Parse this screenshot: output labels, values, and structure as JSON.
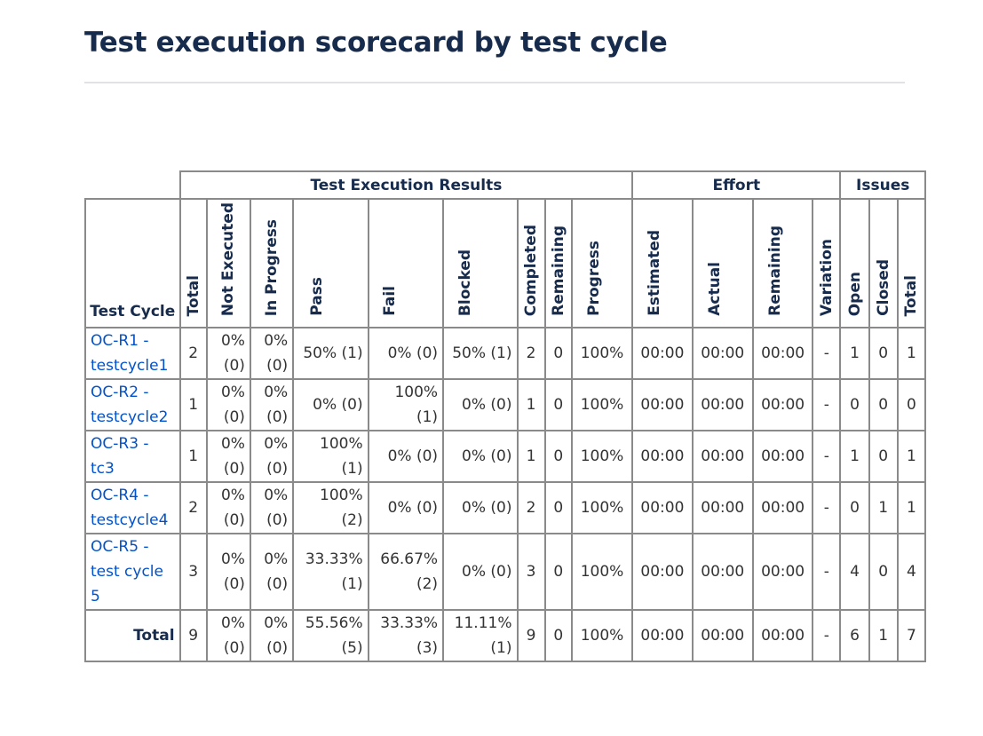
{
  "page": {
    "title": "Test execution scorecard by test cycle"
  },
  "groups": {
    "results": "Test Execution Results",
    "effort": "Effort",
    "issues": "Issues"
  },
  "columns": {
    "test_cycle": "Test Cycle",
    "total": "Total",
    "not_executed": "Not Executed",
    "in_progress": "In Progress",
    "pass": "Pass",
    "fail": "Fail",
    "blocked": "Blocked",
    "completed": "Completed",
    "remaining": "Remaining",
    "progress": "Progress",
    "estimated": "Estimated",
    "actual": "Actual",
    "effort_remaining": "Remaining",
    "variation": "Variation",
    "open": "Open",
    "closed": "Closed",
    "issues_total": "Total"
  },
  "rows": [
    {
      "cycle": "OC-R1 - testcycle1",
      "total": "2",
      "not_executed": "0% (0)",
      "in_progress": "0% (0)",
      "pass": "50% (1)",
      "fail": "0% (0)",
      "blocked": "50% (1)",
      "completed": "2",
      "remaining": "0",
      "progress": "100%",
      "estimated": "00:00",
      "actual": "00:00",
      "effort_remaining": "00:00",
      "variation": "-",
      "open": "1",
      "closed": "0",
      "issues_total": "1"
    },
    {
      "cycle": "OC-R2 - testcycle2",
      "total": "1",
      "not_executed": "0% (0)",
      "in_progress": "0% (0)",
      "pass": "0% (0)",
      "fail": "100% (1)",
      "blocked": "0% (0)",
      "completed": "1",
      "remaining": "0",
      "progress": "100%",
      "estimated": "00:00",
      "actual": "00:00",
      "effort_remaining": "00:00",
      "variation": "-",
      "open": "0",
      "closed": "0",
      "issues_total": "0"
    },
    {
      "cycle": "OC-R3 - tc3",
      "total": "1",
      "not_executed": "0% (0)",
      "in_progress": "0% (0)",
      "pass": "100% (1)",
      "fail": "0% (0)",
      "blocked": "0% (0)",
      "completed": "1",
      "remaining": "0",
      "progress": "100%",
      "estimated": "00:00",
      "actual": "00:00",
      "effort_remaining": "00:00",
      "variation": "-",
      "open": "1",
      "closed": "0",
      "issues_total": "1"
    },
    {
      "cycle": "OC-R4 - testcycle4",
      "total": "2",
      "not_executed": "0% (0)",
      "in_progress": "0% (0)",
      "pass": "100% (2)",
      "fail": "0% (0)",
      "blocked": "0% (0)",
      "completed": "2",
      "remaining": "0",
      "progress": "100%",
      "estimated": "00:00",
      "actual": "00:00",
      "effort_remaining": "00:00",
      "variation": "-",
      "open": "0",
      "closed": "1",
      "issues_total": "1"
    },
    {
      "cycle": "OC-R5 - test cycle 5",
      "total": "3",
      "not_executed": "0% (0)",
      "in_progress": "0% (0)",
      "pass": "33.33% (1)",
      "fail": "66.67% (2)",
      "blocked": "0% (0)",
      "completed": "3",
      "remaining": "0",
      "progress": "100%",
      "estimated": "00:00",
      "actual": "00:00",
      "effort_remaining": "00:00",
      "variation": "-",
      "open": "4",
      "closed": "0",
      "issues_total": "4"
    }
  ],
  "totals": {
    "label": "Total",
    "total": "9",
    "not_executed": "0% (0)",
    "in_progress": "0% (0)",
    "pass": "55.56% (5)",
    "fail": "33.33% (3)",
    "blocked": "11.11% (1)",
    "completed": "9",
    "remaining": "0",
    "progress": "100%",
    "estimated": "00:00",
    "actual": "00:00",
    "effort_remaining": "00:00",
    "variation": "-",
    "open": "6",
    "closed": "1",
    "issues_total": "7"
  },
  "colors": {
    "title": "#172b4d",
    "link": "#0052cc",
    "border": "#8a8a8a"
  }
}
